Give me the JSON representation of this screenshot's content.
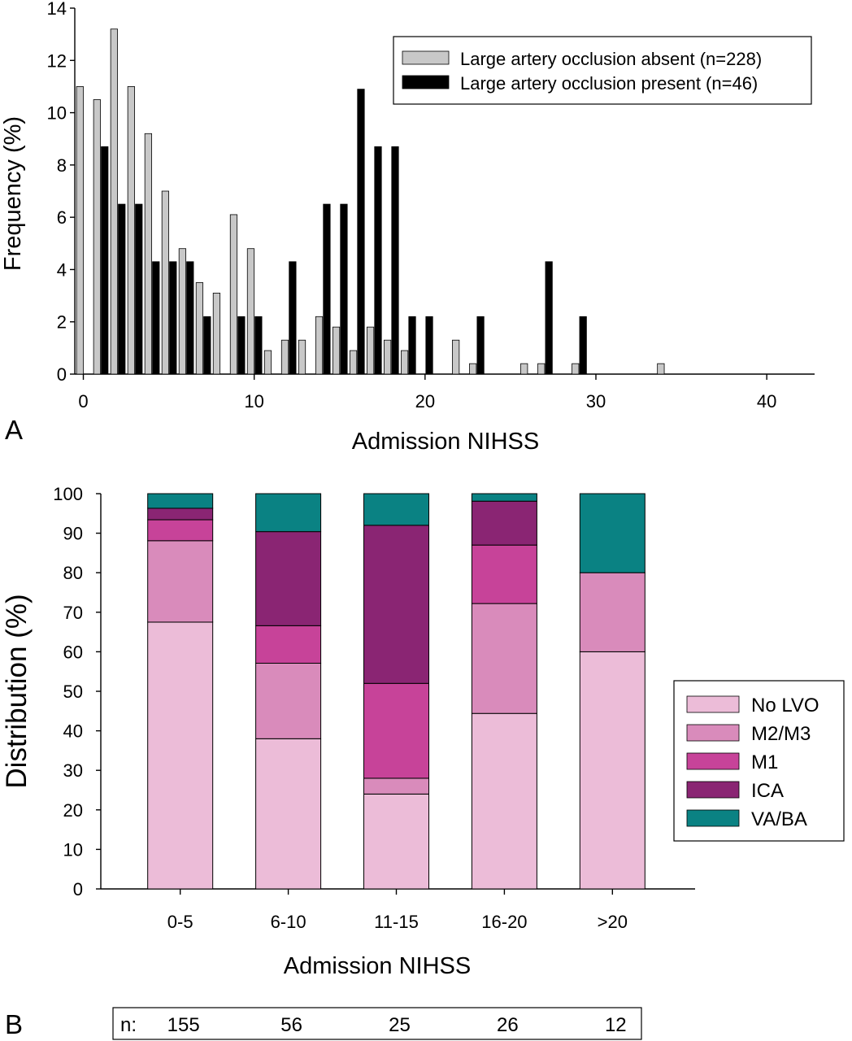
{
  "chart_data": [
    {
      "panel_label": "A",
      "type": "bar",
      "xlabel": "Admission NIHSS",
      "ylabel": "Frequency (%)",
      "xlim": [
        -0.5,
        42.8
      ],
      "ylim": [
        0,
        14
      ],
      "x_ticks": [
        0,
        10,
        20,
        30,
        40
      ],
      "y_ticks": [
        0,
        2,
        4,
        6,
        8,
        10,
        12,
        14
      ],
      "legend_position": "top-right",
      "series": [
        {
          "name": "Large artery occlusion absent (n=228)",
          "color": "#c8c8c8",
          "points": [
            {
              "x": 0,
              "y": 11.0
            },
            {
              "x": 1,
              "y": 10.5
            },
            {
              "x": 2,
              "y": 13.2
            },
            {
              "x": 3,
              "y": 11.0
            },
            {
              "x": 4,
              "y": 9.2
            },
            {
              "x": 5,
              "y": 7.0
            },
            {
              "x": 6,
              "y": 4.8
            },
            {
              "x": 7,
              "y": 3.5
            },
            {
              "x": 8,
              "y": 3.1
            },
            {
              "x": 9,
              "y": 6.1
            },
            {
              "x": 10,
              "y": 4.8
            },
            {
              "x": 11,
              "y": 0.9
            },
            {
              "x": 12,
              "y": 1.3
            },
            {
              "x": 13,
              "y": 1.3
            },
            {
              "x": 14,
              "y": 2.2
            },
            {
              "x": 15,
              "y": 1.8
            },
            {
              "x": 16,
              "y": 0.9
            },
            {
              "x": 17,
              "y": 1.8
            },
            {
              "x": 18,
              "y": 1.3
            },
            {
              "x": 19,
              "y": 0.9
            },
            {
              "x": 22,
              "y": 1.3
            },
            {
              "x": 23,
              "y": 0.4
            },
            {
              "x": 26,
              "y": 0.4
            },
            {
              "x": 27,
              "y": 0.4
            },
            {
              "x": 29,
              "y": 0.4
            },
            {
              "x": 34,
              "y": 0.4
            }
          ]
        },
        {
          "name": "Large artery occlusion present (n=46)",
          "color": "#000000",
          "points": [
            {
              "x": 1,
              "y": 8.7
            },
            {
              "x": 2,
              "y": 6.5
            },
            {
              "x": 3,
              "y": 6.5
            },
            {
              "x": 4,
              "y": 4.3
            },
            {
              "x": 5,
              "y": 4.3
            },
            {
              "x": 6,
              "y": 4.3
            },
            {
              "x": 7,
              "y": 2.2
            },
            {
              "x": 9,
              "y": 2.2
            },
            {
              "x": 10,
              "y": 2.2
            },
            {
              "x": 12,
              "y": 4.3
            },
            {
              "x": 14,
              "y": 6.5
            },
            {
              "x": 15,
              "y": 6.5
            },
            {
              "x": 16,
              "y": 10.9
            },
            {
              "x": 17,
              "y": 8.7
            },
            {
              "x": 18,
              "y": 8.7
            },
            {
              "x": 19,
              "y": 2.2
            },
            {
              "x": 20,
              "y": 2.2
            },
            {
              "x": 23,
              "y": 2.2
            },
            {
              "x": 27,
              "y": 4.3
            },
            {
              "x": 29,
              "y": 2.2
            }
          ]
        }
      ]
    },
    {
      "panel_label": "B",
      "type": "bar",
      "stacked": true,
      "xlabel": "Admission NIHSS",
      "ylabel": "Distribution (%)",
      "ylim": [
        0,
        100
      ],
      "y_ticks": [
        0,
        10,
        20,
        30,
        40,
        50,
        60,
        70,
        80,
        90,
        100
      ],
      "categories": [
        "0-5",
        "6-10",
        "11-15",
        "16-20",
        ">20"
      ],
      "legend_position": "right",
      "series": [
        {
          "name": "No LVO",
          "color": "#ecbcd8",
          "values": [
            67.5,
            38.0,
            24.0,
            44.4,
            60.0
          ]
        },
        {
          "name": "M2/M3",
          "color": "#d98bbb",
          "values": [
            20.6,
            19.1,
            4.0,
            27.8,
            20.0
          ]
        },
        {
          "name": "M1",
          "color": "#c74399",
          "values": [
            5.3,
            9.5,
            24.0,
            14.8,
            0.0
          ]
        },
        {
          "name": "ICA",
          "color": "#8a2573",
          "values": [
            2.9,
            23.8,
            40.0,
            11.1,
            0.0
          ]
        },
        {
          "name": "VA/BA",
          "color": "#0a8283",
          "values": [
            3.7,
            9.6,
            8.0,
            1.9,
            20.0
          ]
        }
      ],
      "n_row": {
        "label": "n:",
        "values": [
          "155",
          "56",
          "25",
          "26",
          "12"
        ]
      }
    }
  ]
}
